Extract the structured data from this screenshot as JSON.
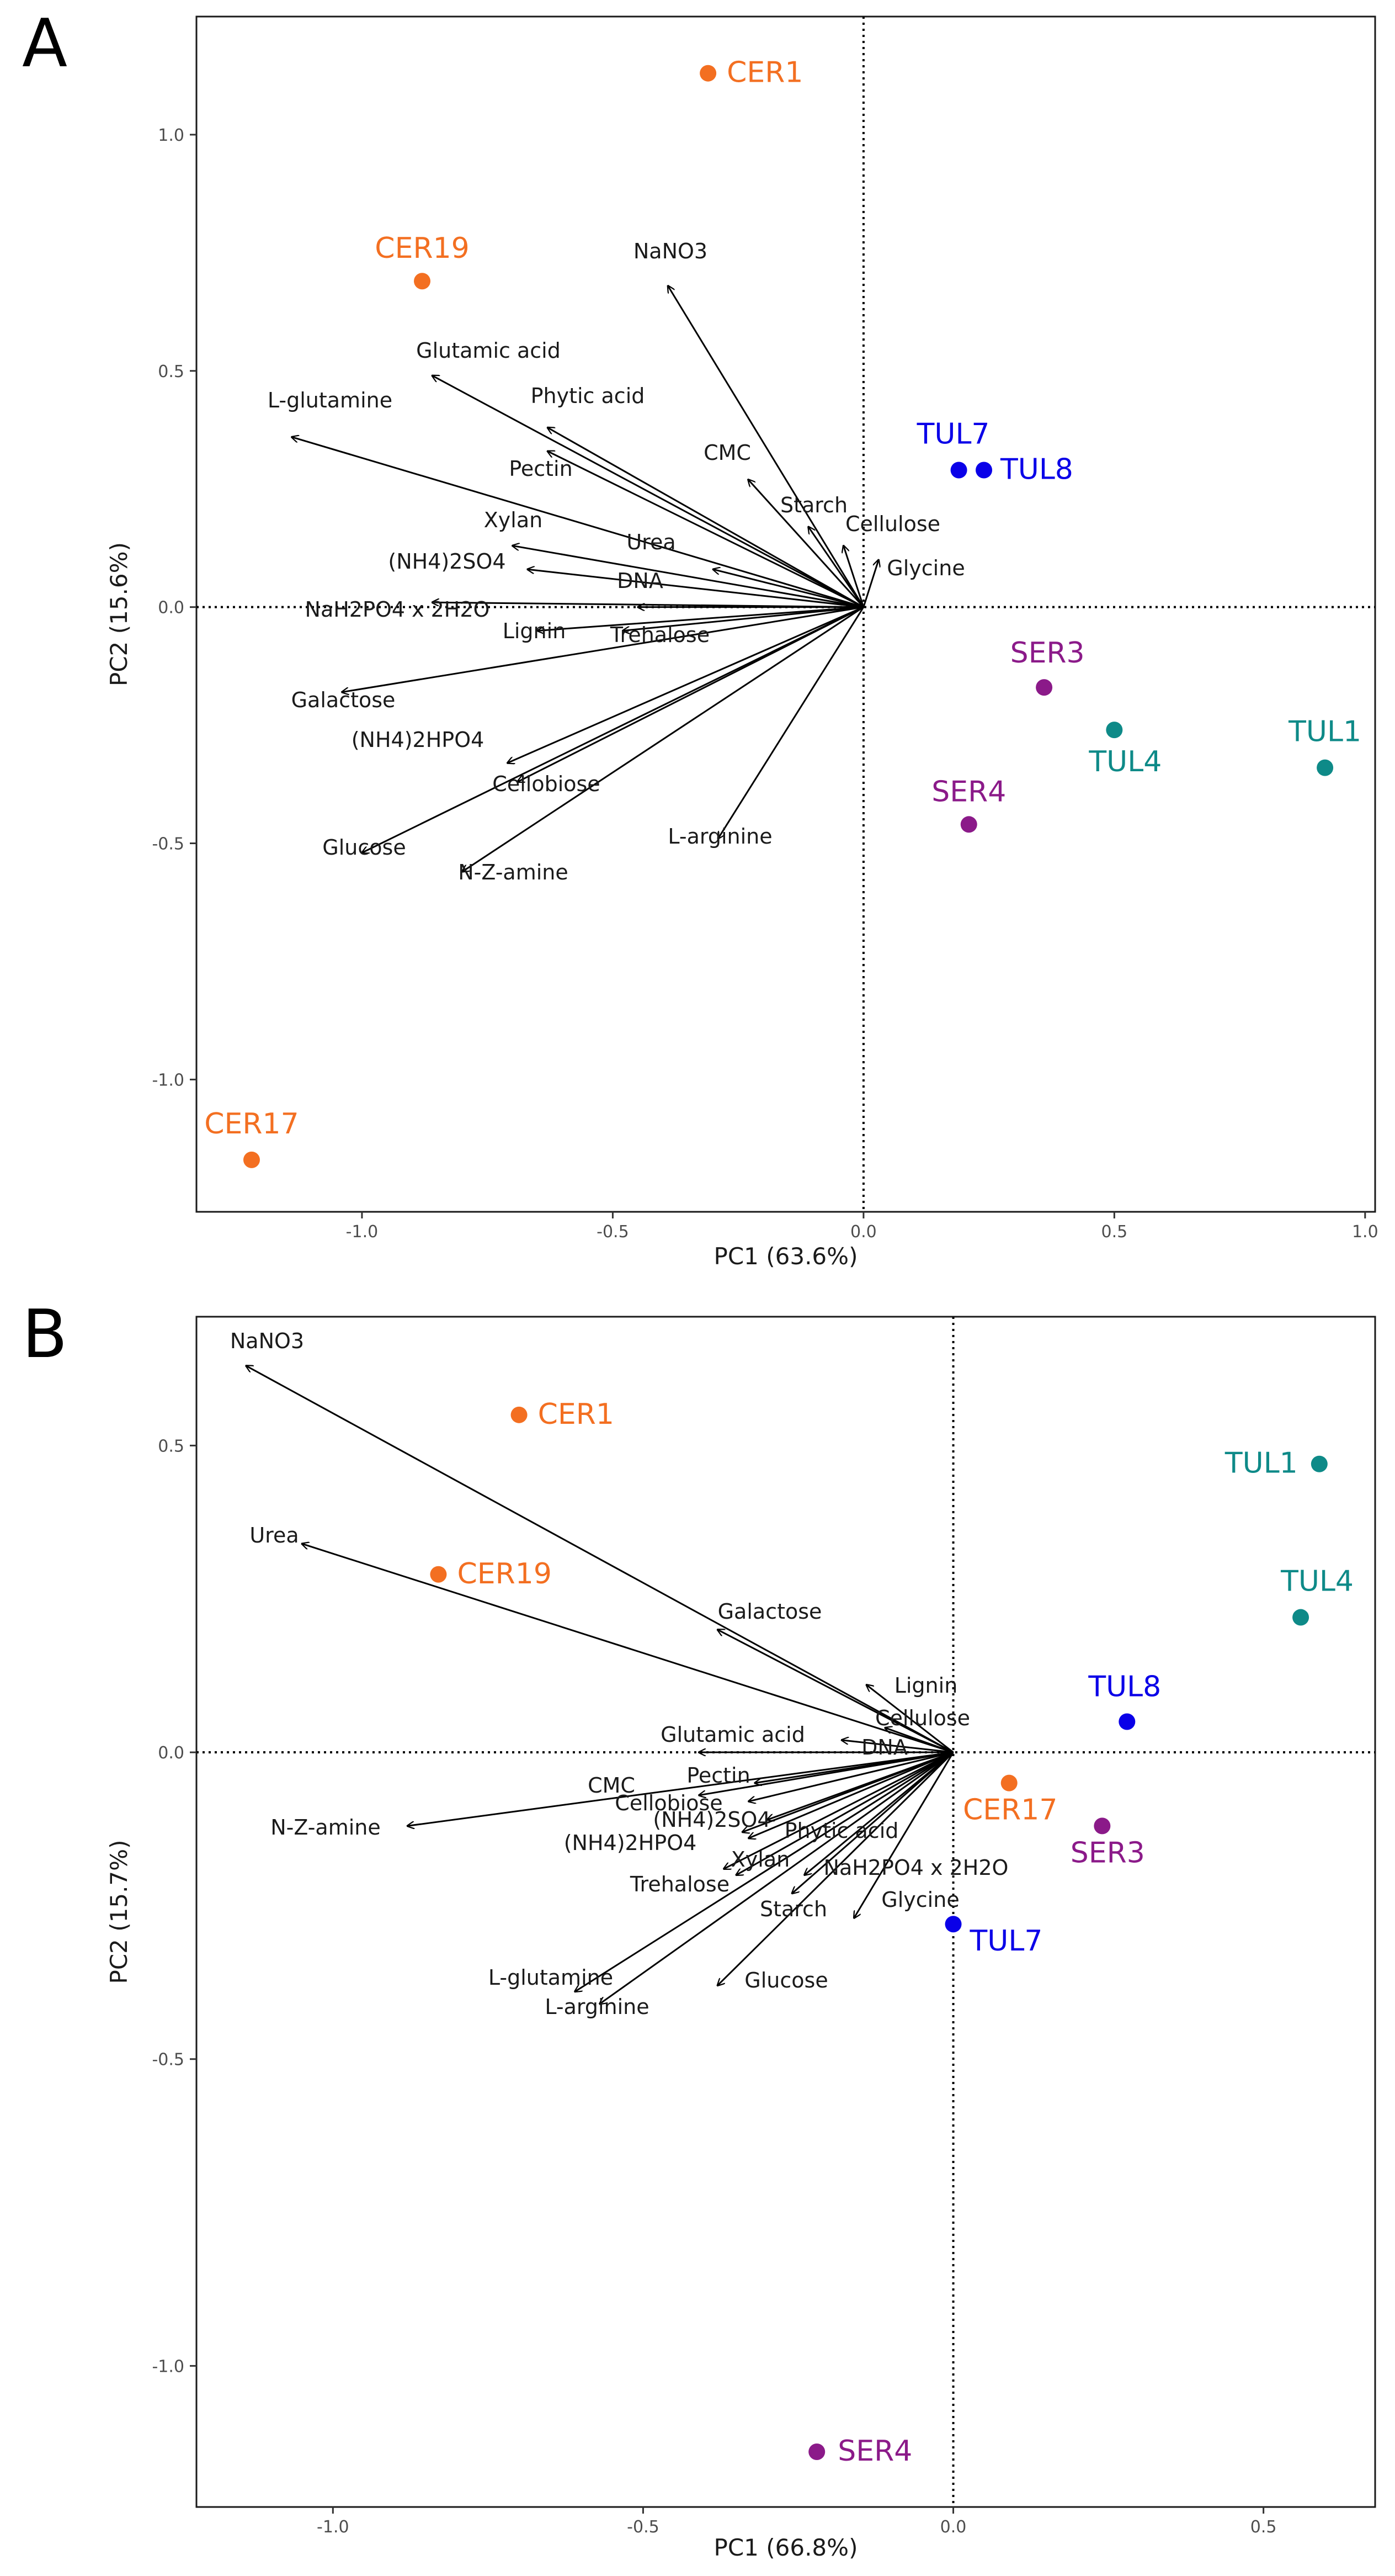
{
  "chart_data": [
    {
      "type": "scatter",
      "panel": "A",
      "xlabel": "PC1 (63.6%)",
      "ylabel": "PC2 (15.6%)",
      "xlim": [
        -1.33,
        1.02
      ],
      "ylim": [
        -1.28,
        1.25
      ],
      "xticks": [
        -1.0,
        -0.5,
        0.0,
        0.5,
        1.0
      ],
      "xtick_labels": [
        "-1.0",
        "-0.5",
        "0.0",
        "0.5",
        "1.0"
      ],
      "yticks": [
        1.0,
        0.5,
        0.0,
        -0.5,
        -1.0
      ],
      "ytick_labels": [
        "1.0",
        "0.5",
        "0.0",
        "-0.5",
        "-1.0"
      ],
      "reference_lines": {
        "x": 0,
        "y": 0,
        "style": "dotted"
      },
      "grid": false,
      "points": [
        {
          "label": "CER1",
          "x": -0.31,
          "y": 1.13,
          "color": "#f36f21"
        },
        {
          "label": "CER19",
          "x": -0.88,
          "y": 0.69,
          "color": "#f36f21"
        },
        {
          "label": "CER17",
          "x": -1.22,
          "y": -1.17,
          "color": "#f36f21"
        },
        {
          "label": "TUL7",
          "x": 0.19,
          "y": 0.29,
          "color": "#0a00e8"
        },
        {
          "label": "TUL8",
          "x": 0.24,
          "y": 0.29,
          "color": "#0a00e8"
        },
        {
          "label": "SER3",
          "x": 0.36,
          "y": -0.17,
          "color": "#8b1a89"
        },
        {
          "label": "SER4",
          "x": 0.21,
          "y": -0.46,
          "color": "#8b1a89"
        },
        {
          "label": "TUL4",
          "x": 0.5,
          "y": -0.26,
          "color": "#0e8a88"
        },
        {
          "label": "TUL1",
          "x": 0.92,
          "y": -0.34,
          "color": "#0e8a88"
        }
      ],
      "vectors": [
        {
          "label": "NaNO3",
          "x": -0.39,
          "y": 0.68
        },
        {
          "label": "Glutamic acid",
          "x": -0.86,
          "y": 0.49
        },
        {
          "label": "L-glutamine",
          "x": -1.14,
          "y": 0.36
        },
        {
          "label": "Phytic acid",
          "x": -0.63,
          "y": 0.38
        },
        {
          "label": "Pectin",
          "x": -0.63,
          "y": 0.33
        },
        {
          "label": "CMC",
          "x": -0.23,
          "y": 0.27
        },
        {
          "label": "Starch",
          "x": -0.11,
          "y": 0.17
        },
        {
          "label": "Cellulose",
          "x": -0.04,
          "y": 0.13
        },
        {
          "label": "Glycine",
          "x": 0.03,
          "y": 0.1
        },
        {
          "label": "Xylan",
          "x": -0.7,
          "y": 0.13
        },
        {
          "label": "Urea",
          "x": -0.3,
          "y": 0.08
        },
        {
          "label": "(NH4)2SO4",
          "x": -0.67,
          "y": 0.08
        },
        {
          "label": "DNA",
          "x": -0.45,
          "y": 0.0
        },
        {
          "label": "NaH2PO4 x 2H2O",
          "x": -0.86,
          "y": 0.01
        },
        {
          "label": "Lignin",
          "x": -0.65,
          "y": -0.05
        },
        {
          "label": "Trehalose",
          "x": -0.48,
          "y": -0.05
        },
        {
          "label": "Galactose",
          "x": -1.04,
          "y": -0.18
        },
        {
          "label": "(NH4)2HPO4",
          "x": -0.71,
          "y": -0.33
        },
        {
          "label": "Cellobiose",
          "x": -0.69,
          "y": -0.37
        },
        {
          "label": "Glucose",
          "x": -1.0,
          "y": -0.52
        },
        {
          "label": "N-Z-amine",
          "x": -0.8,
          "y": -0.56
        },
        {
          "label": "L-arginine",
          "x": -0.29,
          "y": -0.49
        }
      ]
    },
    {
      "type": "scatter",
      "panel": "B",
      "xlabel": "PC1 (66.8%)",
      "ylabel": "PC2 (15.7%)",
      "xlim": [
        -1.22,
        0.68
      ],
      "ylim": [
        -1.23,
        0.71
      ],
      "xticks": [
        -1.0,
        -0.5,
        0.0,
        0.5
      ],
      "xtick_labels": [
        "-1.0",
        "-0.5",
        "0.0",
        "0.5"
      ],
      "yticks": [
        0.5,
        0.0,
        -0.5,
        -1.0
      ],
      "ytick_labels": [
        "0.5",
        "0.0",
        "-0.5",
        "-1.0"
      ],
      "reference_lines": {
        "x": 0,
        "y": 0,
        "style": "dotted"
      },
      "grid": false,
      "points": [
        {
          "label": "CER1",
          "x": -0.7,
          "y": 0.55,
          "color": "#f36f21"
        },
        {
          "label": "CER19",
          "x": -0.83,
          "y": 0.29,
          "color": "#f36f21"
        },
        {
          "label": "CER17",
          "x": 0.09,
          "y": -0.05,
          "color": "#f36f21"
        },
        {
          "label": "TUL1",
          "x": 0.59,
          "y": 0.47,
          "color": "#0e8a88"
        },
        {
          "label": "TUL4",
          "x": 0.56,
          "y": 0.22,
          "color": "#0e8a88"
        },
        {
          "label": "TUL8",
          "x": 0.28,
          "y": 0.05,
          "color": "#0a00e8"
        },
        {
          "label": "TUL7",
          "x": 0.0,
          "y": -0.28,
          "color": "#0a00e8"
        },
        {
          "label": "SER3",
          "x": 0.24,
          "y": -0.12,
          "color": "#8b1a89"
        },
        {
          "label": "SER4",
          "x": -0.22,
          "y": -1.14,
          "color": "#8b1a89"
        }
      ],
      "vectors": [
        {
          "label": "NaNO3",
          "x": -1.14,
          "y": 0.63
        },
        {
          "label": "Urea",
          "x": -1.05,
          "y": 0.34
        },
        {
          "label": "Galactose",
          "x": -0.38,
          "y": 0.2
        },
        {
          "label": "Lignin",
          "x": -0.14,
          "y": 0.11
        },
        {
          "label": "Cellulose",
          "x": -0.11,
          "y": 0.04
        },
        {
          "label": "DNA",
          "x": -0.18,
          "y": 0.02
        },
        {
          "label": "Glutamic acid",
          "x": -0.41,
          "y": 0.0
        },
        {
          "label": "Pectin",
          "x": -0.32,
          "y": -0.05
        },
        {
          "label": "CMC",
          "x": -0.41,
          "y": -0.07
        },
        {
          "label": "Cellobiose",
          "x": -0.33,
          "y": -0.08
        },
        {
          "label": "(NH4)2SO4",
          "x": -0.3,
          "y": -0.11
        },
        {
          "label": "Phytic acid",
          "x": -0.34,
          "y": -0.13
        },
        {
          "label": "(NH4)2HPO4",
          "x": -0.33,
          "y": -0.14
        },
        {
          "label": "Xylan",
          "x": -0.37,
          "y": -0.19
        },
        {
          "label": "NaH2PO4 x 2H2O",
          "x": -0.24,
          "y": -0.2
        },
        {
          "label": "Trehalose",
          "x": -0.35,
          "y": -0.2
        },
        {
          "label": "Starch",
          "x": -0.26,
          "y": -0.23
        },
        {
          "label": "Glycine",
          "x": -0.16,
          "y": -0.27
        },
        {
          "label": "N-Z-amine",
          "x": -0.88,
          "y": -0.12
        },
        {
          "label": "L-glutamine",
          "x": -0.61,
          "y": -0.39
        },
        {
          "label": "L-arginine",
          "x": -0.57,
          "y": -0.41
        },
        {
          "label": "Glucose",
          "x": -0.38,
          "y": -0.38
        }
      ]
    }
  ],
  "panels": {
    "a": {
      "letter": "A"
    },
    "b": {
      "letter": "B"
    }
  }
}
